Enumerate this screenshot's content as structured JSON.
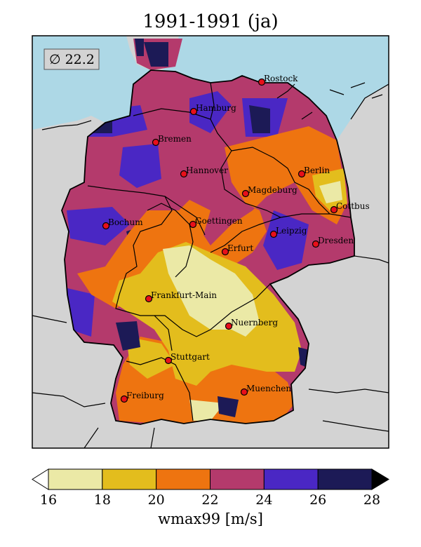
{
  "title": "1991-1991 (ja)",
  "mean_badge": "∅ 22.2",
  "colorbar": {
    "label": "wmax99 [m/s]",
    "ticks": [
      "16",
      "18",
      "20",
      "22",
      "24",
      "26",
      "28"
    ],
    "bins": [
      {
        "range": "16-18",
        "color": "#ebe9a6"
      },
      {
        "range": "18-20",
        "color": "#e3bd1d"
      },
      {
        "range": "20-22",
        "color": "#ee7410"
      },
      {
        "range": "22-24",
        "color": "#b43a6c"
      },
      {
        "range": "24-26",
        "color": "#4a27c4"
      },
      {
        "range": "26-28",
        "color": "#1c1a56"
      }
    ],
    "under_color": "#ffffff",
    "over_color": "#000000"
  },
  "colors": {
    "sea": "#add8e6",
    "land": "#d3d3d3",
    "marker": "#e8101a"
  },
  "cities": [
    {
      "name": "Rostock"
    },
    {
      "name": "Hamburg"
    },
    {
      "name": "Bremen"
    },
    {
      "name": "Hannover"
    },
    {
      "name": "Berlin"
    },
    {
      "name": "Magdeburg"
    },
    {
      "name": "Cottbus"
    },
    {
      "name": "Bochum"
    },
    {
      "name": "Goettingen"
    },
    {
      "name": "Leipzig"
    },
    {
      "name": "Dresden"
    },
    {
      "name": "Erfurt"
    },
    {
      "name": "Frankfurt-Main"
    },
    {
      "name": "Nuernberg"
    },
    {
      "name": "Stuttgart"
    },
    {
      "name": "Muenchen"
    },
    {
      "name": "Freiburg"
    }
  ]
}
